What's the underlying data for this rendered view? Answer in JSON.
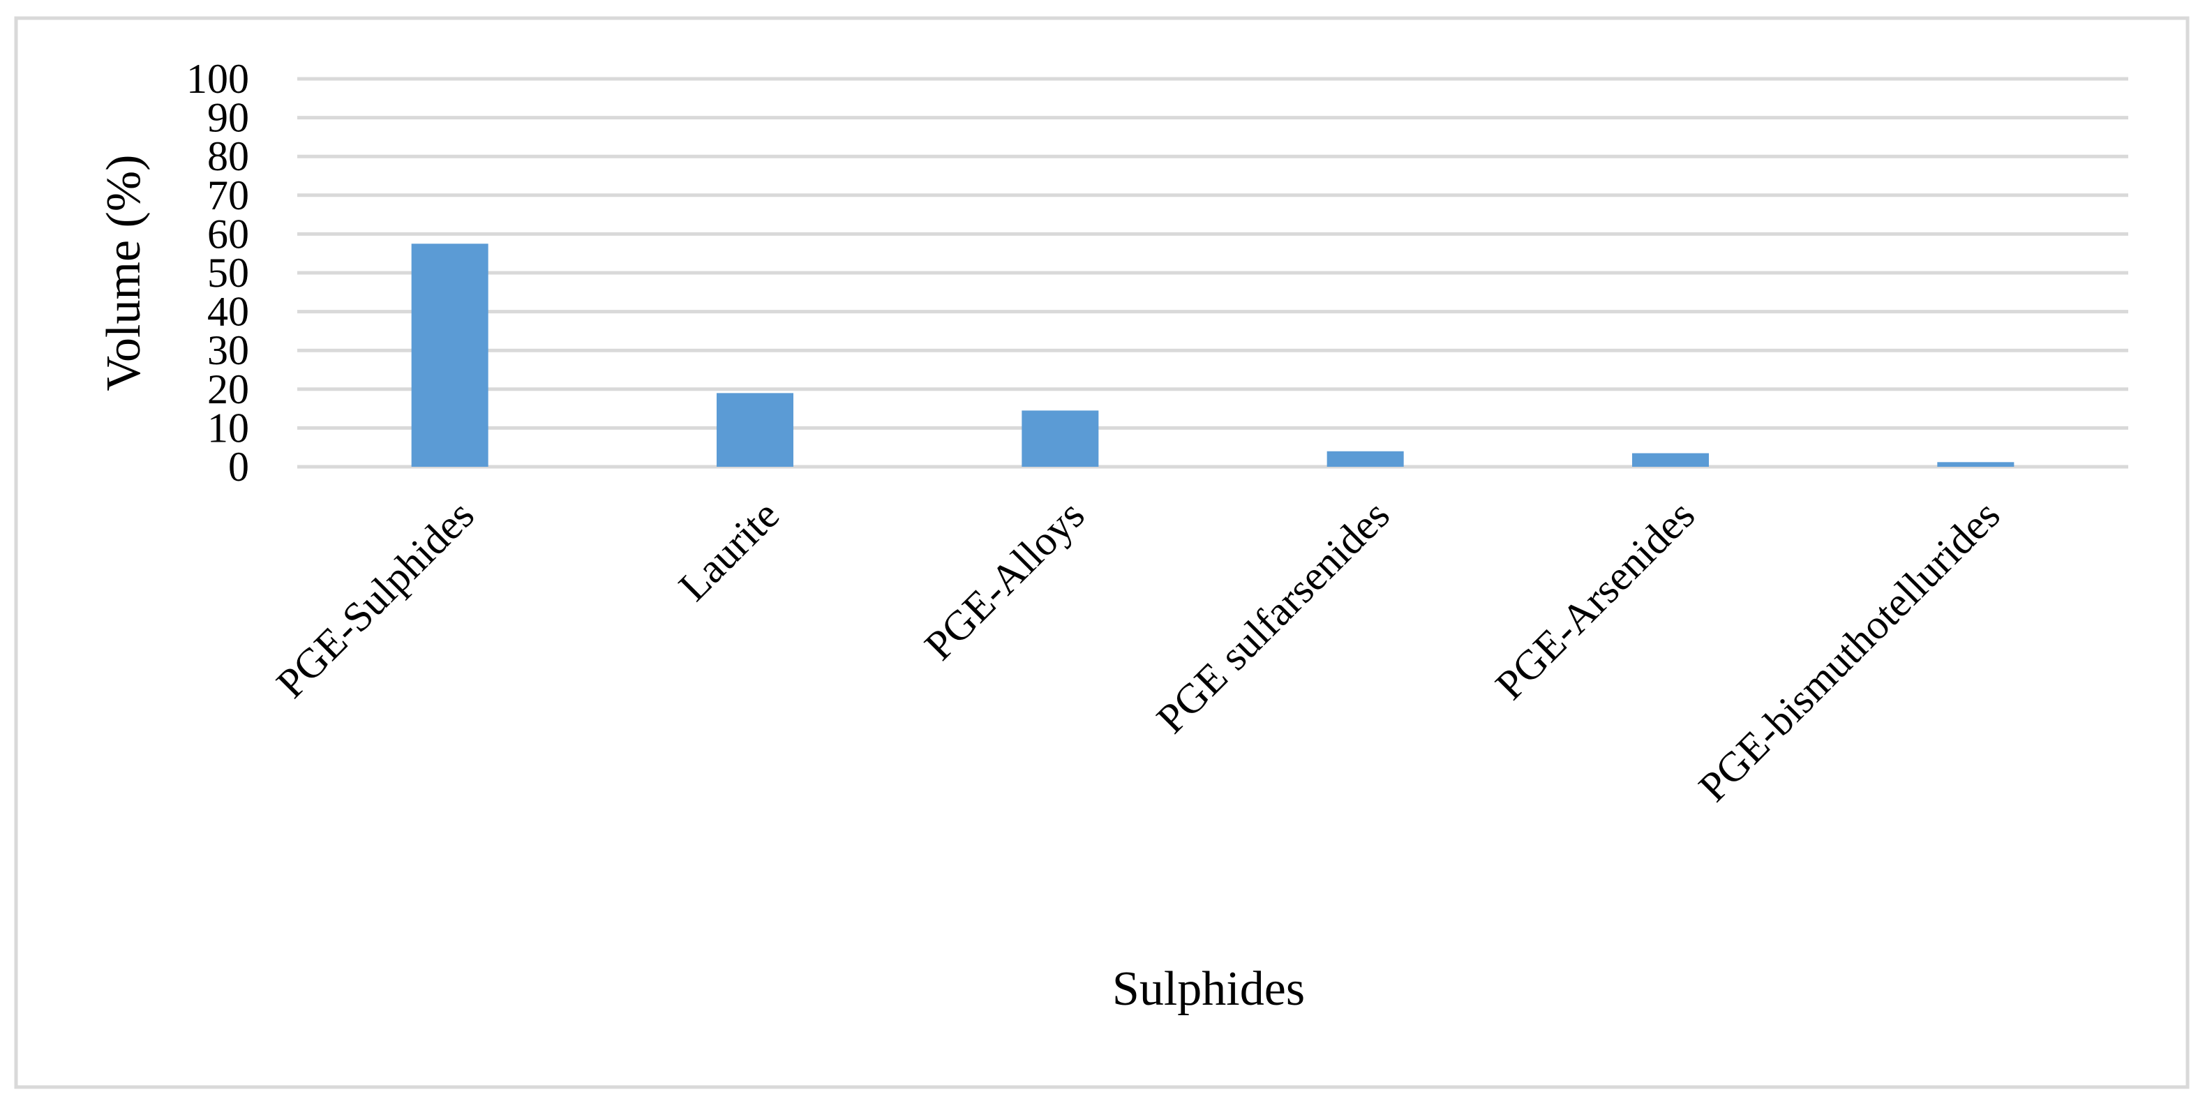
{
  "chart_data": {
    "type": "bar",
    "categories": [
      "PGE-Sulphides",
      "Laurite",
      "PGE-Alloys",
      "PGE sulfarsenides",
      "PGE-Arsenides",
      "PGE-bismuthotellurides"
    ],
    "values": [
      57.5,
      19,
      14.5,
      4,
      3.5,
      1.2
    ],
    "xlabel": "Sulphides",
    "ylabel": "Volume (%)",
    "ylim": [
      0,
      100
    ],
    "yticks": [
      0,
      10,
      20,
      30,
      40,
      50,
      60,
      70,
      80,
      90,
      100
    ],
    "grid": true,
    "bar_color": "#5b9bd5",
    "grid_color": "#d9d9d9",
    "border_color": "#d9d9d9"
  }
}
